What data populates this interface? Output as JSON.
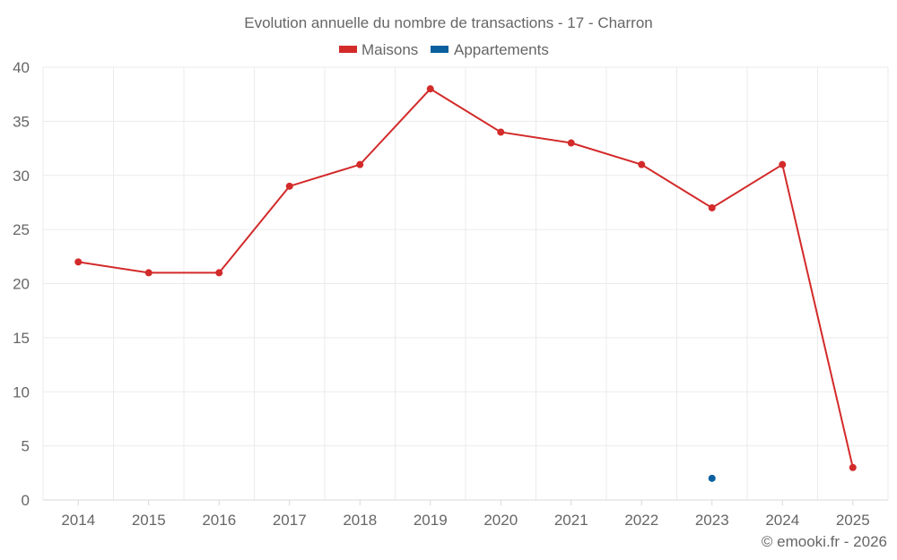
{
  "chart_data": {
    "type": "line",
    "title": "Evolution annuelle du nombre de transactions - 17 - Charron",
    "categories": [
      "2014",
      "2015",
      "2016",
      "2017",
      "2018",
      "2019",
      "2020",
      "2021",
      "2022",
      "2023",
      "2024",
      "2025"
    ],
    "series": [
      {
        "name": "Maisons",
        "color": "#d32a2a",
        "values": [
          22,
          21,
          21,
          29,
          31,
          38,
          34,
          33,
          31,
          27,
          31,
          3
        ]
      },
      {
        "name": "Appartements",
        "color": "#0a5f9e",
        "values": [
          null,
          null,
          null,
          null,
          null,
          null,
          null,
          null,
          null,
          2,
          null,
          null
        ]
      }
    ],
    "ylim": [
      0,
      40
    ],
    "yticks": [
      "0",
      "5",
      "10",
      "15",
      "20",
      "25",
      "30",
      "35",
      "40"
    ],
    "xlabel": "",
    "ylabel": "",
    "grid": true,
    "legend_position": "top-center"
  },
  "credit": "© emooki.fr - 2026"
}
